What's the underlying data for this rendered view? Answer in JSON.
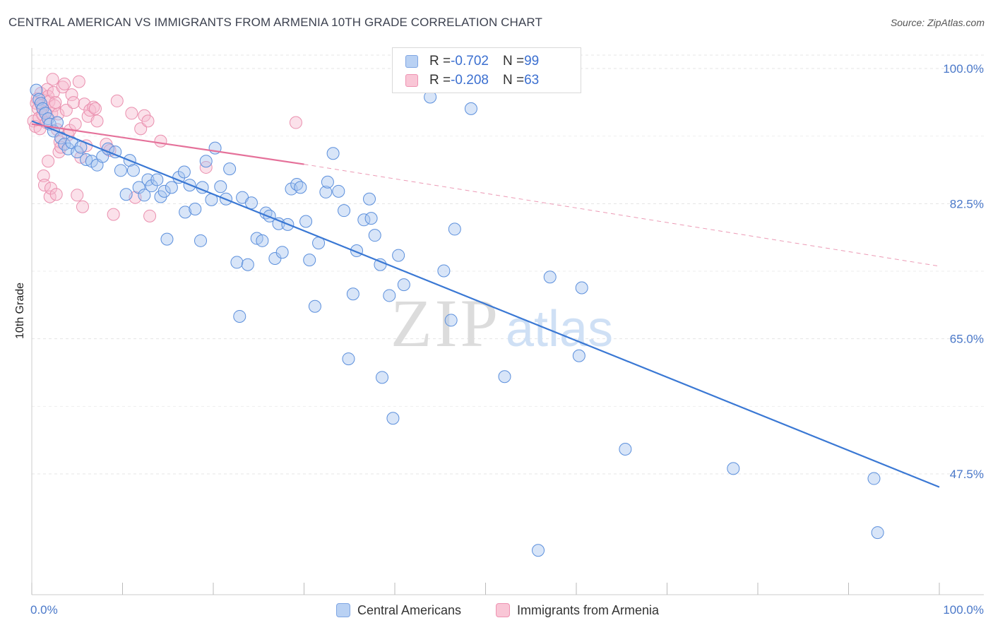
{
  "title": "CENTRAL AMERICAN VS IMMIGRANTS FROM ARMENIA 10TH GRADE CORRELATION CHART",
  "source": "Source: ZipAtlas.com",
  "watermark": {
    "zip": "ZIP",
    "atlas": "atlas"
  },
  "legend": {
    "rows": [
      {
        "r_label": "R = ",
        "r_value": "-0.702",
        "n_label": "N = ",
        "n_value": "99",
        "color": "#8fb3ec"
      },
      {
        "r_label": "R = ",
        "r_value": "-0.208",
        "n_label": "N = ",
        "n_value": "63",
        "color": "#f4a7c0"
      }
    ]
  },
  "colors": {
    "blue": "#3a78d4",
    "pink": "#e5719a",
    "blue_fill": "#a9c6f0",
    "pink_fill": "#f7bdd0"
  },
  "chart_data": {
    "type": "scatter",
    "title": "CENTRAL AMERICAN VS IMMIGRANTS FROM ARMENIA 10TH GRADE CORRELATION CHART",
    "xlabel": "",
    "ylabel": "10th Grade",
    "xlim": [
      0,
      100
    ],
    "ylim": [
      30,
      102
    ],
    "x_tick_labels": [
      "0.0%",
      "100.0%"
    ],
    "y_ticks": [
      47.5,
      65.0,
      82.5,
      100.0
    ],
    "y_tick_labels": [
      "47.5%",
      "65.0%",
      "82.5%",
      "100.0%"
    ],
    "grid": true,
    "legend_position": "bottom",
    "series": [
      {
        "name": "Central Americans",
        "color": "#3a78d4",
        "trend": {
          "x": [
            0,
            100
          ],
          "y": [
            93.2,
            45.8
          ]
        },
        "points": [
          [
            0.5,
            97.2
          ],
          [
            0.8,
            96.0
          ],
          [
            1.0,
            95.5
          ],
          [
            1.2,
            94.8
          ],
          [
            1.5,
            94.2
          ],
          [
            1.8,
            93.5
          ],
          [
            2.0,
            92.8
          ],
          [
            2.4,
            91.9
          ],
          [
            2.8,
            93.0
          ],
          [
            3.2,
            91.0
          ],
          [
            3.6,
            90.2
          ],
          [
            4.0,
            89.6
          ],
          [
            4.4,
            90.4
          ],
          [
            5.0,
            89.2
          ],
          [
            5.4,
            89.8
          ],
          [
            6.0,
            88.2
          ],
          [
            6.6,
            88.0
          ],
          [
            7.2,
            87.5
          ],
          [
            7.8,
            88.6
          ],
          [
            8.4,
            89.6
          ],
          [
            9.2,
            89.2
          ],
          [
            9.8,
            86.8
          ],
          [
            10.4,
            83.7
          ],
          [
            10.8,
            88.1
          ],
          [
            11.2,
            86.8
          ],
          [
            11.8,
            84.6
          ],
          [
            12.4,
            83.6
          ],
          [
            12.8,
            85.6
          ],
          [
            13.2,
            84.8
          ],
          [
            13.8,
            85.6
          ],
          [
            14.2,
            83.4
          ],
          [
            14.6,
            84.1
          ],
          [
            14.9,
            77.9
          ],
          [
            15.4,
            84.6
          ],
          [
            16.2,
            85.9
          ],
          [
            16.8,
            86.6
          ],
          [
            16.9,
            81.4
          ],
          [
            17.4,
            84.9
          ],
          [
            18.0,
            81.8
          ],
          [
            18.6,
            77.7
          ],
          [
            18.8,
            84.6
          ],
          [
            19.2,
            88.0
          ],
          [
            19.8,
            83.0
          ],
          [
            20.2,
            89.7
          ],
          [
            20.8,
            84.7
          ],
          [
            21.4,
            83.1
          ],
          [
            21.8,
            87.0
          ],
          [
            22.6,
            74.9
          ],
          [
            22.9,
            67.9
          ],
          [
            23.2,
            83.3
          ],
          [
            23.8,
            74.6
          ],
          [
            24.2,
            82.6
          ],
          [
            24.8,
            78.0
          ],
          [
            25.4,
            77.7
          ],
          [
            25.8,
            81.3
          ],
          [
            26.2,
            80.9
          ],
          [
            26.8,
            75.4
          ],
          [
            27.2,
            79.9
          ],
          [
            27.6,
            76.2
          ],
          [
            28.2,
            79.8
          ],
          [
            28.6,
            84.4
          ],
          [
            29.2,
            85.0
          ],
          [
            29.6,
            84.6
          ],
          [
            30.2,
            80.2
          ],
          [
            30.6,
            75.2
          ],
          [
            31.2,
            69.2
          ],
          [
            31.6,
            77.4
          ],
          [
            32.4,
            84.0
          ],
          [
            32.6,
            85.3
          ],
          [
            33.2,
            89.0
          ],
          [
            33.8,
            84.1
          ],
          [
            34.4,
            81.6
          ],
          [
            34.9,
            62.4
          ],
          [
            35.4,
            70.8
          ],
          [
            35.8,
            76.4
          ],
          [
            36.6,
            80.4
          ],
          [
            37.2,
            83.1
          ],
          [
            37.4,
            80.6
          ],
          [
            37.8,
            78.4
          ],
          [
            38.4,
            74.6
          ],
          [
            38.6,
            60.0
          ],
          [
            39.4,
            70.6
          ],
          [
            39.8,
            54.7
          ],
          [
            40.4,
            75.8
          ],
          [
            41.0,
            72.0
          ],
          [
            43.9,
            96.3
          ],
          [
            45.4,
            73.8
          ],
          [
            46.2,
            67.4
          ],
          [
            46.6,
            79.2
          ],
          [
            48.4,
            94.8
          ],
          [
            49.2,
            98.8
          ],
          [
            52.1,
            60.1
          ],
          [
            57.1,
            73.0
          ],
          [
            60.3,
            62.8
          ],
          [
            60.6,
            71.6
          ],
          [
            65.4,
            50.7
          ],
          [
            77.3,
            48.2
          ],
          [
            93.2,
            39.9
          ],
          [
            92.8,
            46.9
          ],
          [
            55.8,
            37.6
          ]
        ]
      },
      {
        "name": "Immigrants from Armenia",
        "color": "#e5719a",
        "trend": {
          "x": [
            0,
            30
          ],
          "y": [
            92.8,
            87.6
          ],
          "dashed_x": [
            30,
            100
          ],
          "dashed_y": [
            87.6,
            74.4
          ]
        },
        "points": [
          [
            0.2,
            93.2
          ],
          [
            0.4,
            92.5
          ],
          [
            0.5,
            95.5
          ],
          [
            0.6,
            96.1
          ],
          [
            0.7,
            94.8
          ],
          [
            0.8,
            93.6
          ],
          [
            0.9,
            92.2
          ],
          [
            1.0,
            96.8
          ],
          [
            1.1,
            95.2
          ],
          [
            1.2,
            94.0
          ],
          [
            1.3,
            86.1
          ],
          [
            1.4,
            84.9
          ],
          [
            1.5,
            94.4
          ],
          [
            1.6,
            93.0
          ],
          [
            1.7,
            97.3
          ],
          [
            1.8,
            96.4
          ],
          [
            1.9,
            95.7
          ],
          [
            2.0,
            83.4
          ],
          [
            2.1,
            84.5
          ],
          [
            2.2,
            94.2
          ],
          [
            2.3,
            98.6
          ],
          [
            2.4,
            96.9
          ],
          [
            2.5,
            95.2
          ],
          [
            2.6,
            95.6
          ],
          [
            2.7,
            83.7
          ],
          [
            2.8,
            92.1
          ],
          [
            2.9,
            94.1
          ],
          [
            3.0,
            89.2
          ],
          [
            3.1,
            90.5
          ],
          [
            3.2,
            89.8
          ],
          [
            3.4,
            97.6
          ],
          [
            3.6,
            98.0
          ],
          [
            3.8,
            94.6
          ],
          [
            4.0,
            91.4
          ],
          [
            4.2,
            92.0
          ],
          [
            4.4,
            96.6
          ],
          [
            4.6,
            95.6
          ],
          [
            4.8,
            92.8
          ],
          [
            5.0,
            83.6
          ],
          [
            5.2,
            98.3
          ],
          [
            5.4,
            88.5
          ],
          [
            5.6,
            82.1
          ],
          [
            5.8,
            95.4
          ],
          [
            6.0,
            90.0
          ],
          [
            6.2,
            93.8
          ],
          [
            6.4,
            94.6
          ],
          [
            6.8,
            95.0
          ],
          [
            7.0,
            94.8
          ],
          [
            7.2,
            93.2
          ],
          [
            8.2,
            90.2
          ],
          [
            8.6,
            89.4
          ],
          [
            9.0,
            81.1
          ],
          [
            9.4,
            95.8
          ],
          [
            11.0,
            94.2
          ],
          [
            11.4,
            83.3
          ],
          [
            12.0,
            92.2
          ],
          [
            12.4,
            93.9
          ],
          [
            12.8,
            93.2
          ],
          [
            13.0,
            80.9
          ],
          [
            14.2,
            90.6
          ],
          [
            19.2,
            87.2
          ],
          [
            29.1,
            93.0
          ],
          [
            1.8,
            88.0
          ]
        ]
      }
    ]
  }
}
